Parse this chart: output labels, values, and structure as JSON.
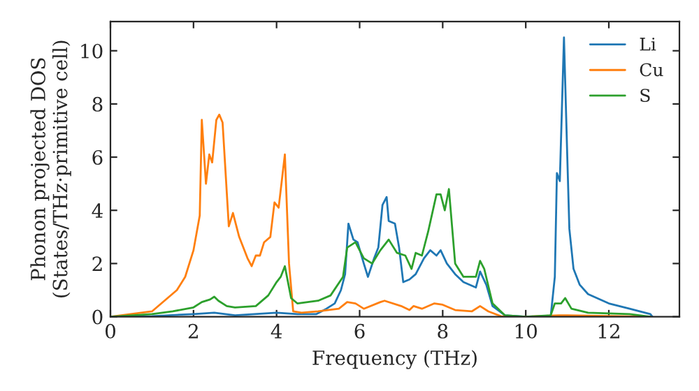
{
  "chart_data": {
    "type": "line",
    "xlabel": "Frequency (THz)",
    "ylabel": "Phonon projected DOS\n(States/THz·primitive cell)",
    "xlim": [
      0,
      13.7
    ],
    "ylim": [
      0,
      11.1
    ],
    "xticks": [
      0,
      2,
      4,
      6,
      8,
      10,
      12
    ],
    "yticks": [
      0,
      2,
      4,
      6,
      8,
      10
    ],
    "grid": false,
    "legend": "top right",
    "line_style": "solid",
    "marker": "none",
    "series": [
      {
        "name": "Li",
        "color": "#1f77b4",
        "x": [
          0,
          1,
          2,
          2.5,
          3,
          4,
          4.5,
          4.96,
          5.2,
          5.4,
          5.55,
          5.65,
          5.73,
          5.85,
          5.95,
          6.1,
          6.2,
          6.35,
          6.45,
          6.55,
          6.65,
          6.7,
          6.85,
          6.95,
          7.05,
          7.2,
          7.35,
          7.55,
          7.7,
          7.85,
          7.95,
          8.1,
          8.3,
          8.5,
          8.8,
          8.9,
          9.05,
          9.2,
          9.5,
          10.0,
          10.6,
          10.7,
          10.75,
          10.82,
          10.92,
          11.0,
          11.05,
          11.15,
          11.3,
          11.5,
          12,
          12.5,
          13,
          13.05
        ],
        "values": [
          0,
          0.02,
          0.1,
          0.15,
          0.05,
          0.15,
          0.1,
          0.1,
          0.3,
          0.5,
          1.0,
          1.6,
          3.5,
          2.9,
          2.8,
          2.0,
          1.5,
          2.2,
          2.6,
          4.2,
          4.5,
          3.6,
          3.5,
          2.6,
          1.3,
          1.4,
          1.6,
          2.2,
          2.5,
          2.3,
          2.5,
          2.0,
          1.6,
          1.3,
          1.1,
          1.7,
          1.2,
          0.4,
          0.05,
          0,
          0,
          1.5,
          5.4,
          5.1,
          10.5,
          6,
          3.3,
          1.8,
          1.2,
          0.85,
          0.5,
          0.3,
          0.1,
          0
        ]
      },
      {
        "name": "Cu",
        "color": "#ff7f0e",
        "x": [
          0,
          1,
          1.3,
          1.6,
          1.8,
          2.0,
          2.15,
          2.2,
          2.3,
          2.38,
          2.45,
          2.55,
          2.62,
          2.7,
          2.85,
          2.95,
          3.1,
          3.3,
          3.4,
          3.5,
          3.6,
          3.7,
          3.85,
          3.95,
          4.05,
          4.2,
          4.3,
          4.4,
          4.6,
          5,
          5.5,
          5.7,
          5.9,
          6.1,
          6.5,
          6.6,
          7.0,
          7.2,
          7.3,
          7.5,
          7.8,
          8.0,
          8.3,
          8.7,
          8.9,
          9.1,
          9.4,
          10,
          10.8,
          11,
          13
        ],
        "values": [
          0,
          0.2,
          0.6,
          1.0,
          1.5,
          2.5,
          3.8,
          7.4,
          5.0,
          6.1,
          5.8,
          7.4,
          7.6,
          7.3,
          3.4,
          3.9,
          3.0,
          2.2,
          1.9,
          2.3,
          2.3,
          2.8,
          3.0,
          4.3,
          4.1,
          6.1,
          2.0,
          0.2,
          0.15,
          0.2,
          0.3,
          0.55,
          0.5,
          0.3,
          0.55,
          0.6,
          0.4,
          0.25,
          0.4,
          0.3,
          0.5,
          0.45,
          0.25,
          0.2,
          0.4,
          0.2,
          0.02,
          0,
          0.05,
          0.05,
          0
        ]
      },
      {
        "name": "S",
        "color": "#2ca02c",
        "x": [
          0,
          1,
          1.5,
          2,
          2.2,
          2.4,
          2.5,
          2.6,
          2.8,
          3,
          3.5,
          3.8,
          4.0,
          4.1,
          4.2,
          4.35,
          4.5,
          5,
          5.3,
          5.6,
          5.7,
          5.9,
          6.1,
          6.3,
          6.5,
          6.7,
          6.9,
          7.1,
          7.25,
          7.35,
          7.5,
          7.65,
          7.85,
          7.95,
          8.05,
          8.15,
          8.3,
          8.5,
          8.8,
          8.9,
          9.0,
          9.2,
          9.5,
          10,
          10.6,
          10.7,
          10.85,
          10.95,
          11.1,
          11.5,
          12.5,
          13
        ],
        "values": [
          0,
          0.1,
          0.2,
          0.35,
          0.55,
          0.65,
          0.75,
          0.6,
          0.4,
          0.35,
          0.4,
          0.8,
          1.3,
          1.5,
          1.9,
          0.7,
          0.5,
          0.6,
          0.8,
          1.5,
          2.6,
          2.8,
          2.2,
          2.0,
          2.5,
          2.9,
          2.4,
          2.3,
          1.8,
          2.4,
          2.3,
          3.2,
          4.6,
          4.6,
          4.0,
          4.8,
          2.0,
          1.5,
          1.5,
          2.1,
          1.8,
          0.5,
          0.05,
          0,
          0.05,
          0.5,
          0.5,
          0.7,
          0.3,
          0.15,
          0.1,
          0
        ]
      }
    ]
  }
}
